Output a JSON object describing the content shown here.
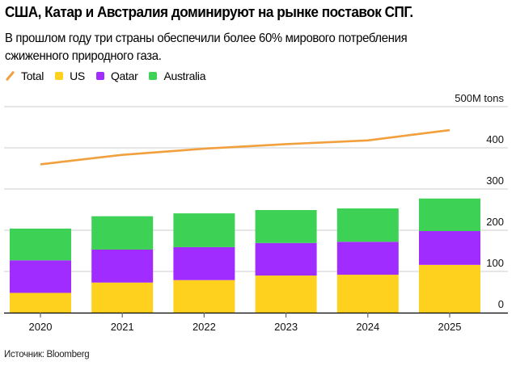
{
  "title": "США, Катар и Австралия доминируют на рынке поставок СПГ.",
  "subtitle": "В прошлом году три страны обеспечили более 60% мирового потребления сжиженного природного газа.",
  "source": "Источник: Bloomberg",
  "legend": [
    {
      "key": "total",
      "label": "Total",
      "shape": "line",
      "color": "#F2A03D"
    },
    {
      "key": "us",
      "label": "US",
      "shape": "square",
      "color": "#FDD11D"
    },
    {
      "key": "qatar",
      "label": "Qatar",
      "shape": "square",
      "color": "#A12CFF"
    },
    {
      "key": "australia",
      "label": "Australia",
      "shape": "square",
      "color": "#3DD155"
    }
  ],
  "chart_data": {
    "type": "bar",
    "stacked": true,
    "title": "США, Катар и Австралия доминируют на рынке поставок СПГ.",
    "xlabel": "",
    "ylabel": "M tons",
    "categories": [
      "2020",
      "2021",
      "2022",
      "2023",
      "2024",
      "2025"
    ],
    "series": [
      {
        "name": "US",
        "type": "bar",
        "color": "#FDD11D",
        "values": [
          48,
          73,
          79,
          90,
          92,
          116
        ]
      },
      {
        "name": "Qatar",
        "type": "bar",
        "color": "#A12CFF",
        "values": [
          79,
          80,
          80,
          79,
          80,
          82
        ]
      },
      {
        "name": "Australia",
        "type": "bar",
        "color": "#3DD155",
        "values": [
          77,
          81,
          82,
          80,
          81,
          79
        ]
      },
      {
        "name": "Total",
        "type": "line",
        "color": "#F2A03D",
        "values": [
          360,
          383,
          398,
          409,
          418,
          443
        ]
      }
    ],
    "ylim": [
      0,
      500
    ],
    "yticks": [
      0,
      100,
      200,
      300,
      400,
      500
    ],
    "ytick_labels": [
      "0",
      "100",
      "200",
      "300",
      "400",
      "500M tons"
    ],
    "y_axis_side": "right",
    "grid": true,
    "legend_position": "top-left"
  }
}
